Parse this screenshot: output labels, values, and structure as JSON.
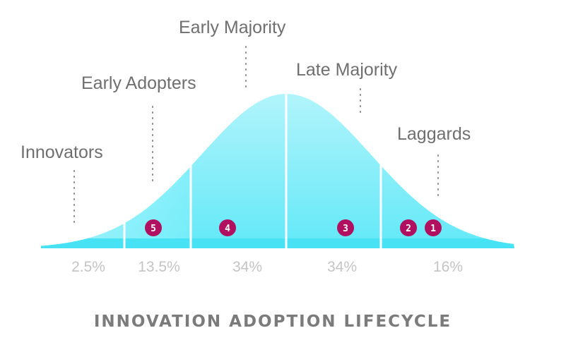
{
  "title": "INNOVATION ADOPTION LIFECYCLE",
  "segments": [
    {
      "label": "Innovators",
      "percent": "2.5%",
      "badge": "",
      "share": 2.5
    },
    {
      "label": "Early Adopters",
      "percent": "13.5%",
      "badge": "5",
      "share": 13.5
    },
    {
      "label": "Early Majority",
      "percent": "34%",
      "badge": "4",
      "share": 34
    },
    {
      "label": "Late Majority",
      "percent": "34%",
      "badge": "3",
      "share": 34
    },
    {
      "label": "Laggards",
      "percent": "16%",
      "badge": "2",
      "badge2": "1",
      "share": 16
    }
  ],
  "colors": {
    "curve_fill": "#5fe9f7",
    "curve_fill_light": "#d9fafd",
    "badge": "#b0105f",
    "label_text": "#6f6f6f",
    "percent_text": "#c4c4c4",
    "title_text": "#7b7b7b",
    "divider": "#ffffff"
  }
}
